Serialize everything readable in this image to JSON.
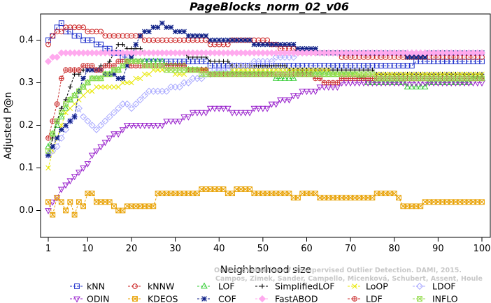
{
  "chart_data": {
    "type": "line",
    "title": "PageBlocks_norm_02_v06",
    "xlabel": "Neighborhood size",
    "ylabel": "Adjusted P@n",
    "xlim": [
      1,
      100
    ],
    "ylim": [
      -0.05,
      0.45
    ],
    "xticks": [
      1,
      10,
      20,
      30,
      40,
      50,
      60,
      70,
      80,
      90,
      100
    ],
    "yticks": [
      0.0,
      0.1,
      0.2,
      0.3,
      0.4
    ],
    "ytick_labels": [
      "0.0",
      "0.1",
      "0.2",
      "0.3",
      "0.4"
    ],
    "grid": false,
    "legend_position": "bottom",
    "watermark": [
      "Campos, Zimek, Sander, Campello, Micenková, Schubert, Assent, Houle",
      "On the Evaluation of Unsupervised Outlier Detection. DAMI, 2015."
    ],
    "series": [
      {
        "name": "kNN",
        "color": "#2233cc",
        "marker": "square",
        "points": [
          [
            1,
            0.4
          ],
          [
            2,
            0.41
          ],
          [
            3,
            0.43
          ],
          [
            4,
            0.44
          ],
          [
            5,
            0.42
          ],
          [
            7,
            0.41
          ],
          [
            10,
            0.4
          ],
          [
            12,
            0.39
          ],
          [
            15,
            0.38
          ],
          [
            18,
            0.36
          ],
          [
            20,
            0.35
          ],
          [
            25,
            0.35
          ],
          [
            30,
            0.35
          ],
          [
            35,
            0.35
          ],
          [
            40,
            0.34
          ],
          [
            50,
            0.34
          ],
          [
            60,
            0.34
          ],
          [
            70,
            0.34
          ],
          [
            80,
            0.34
          ],
          [
            90,
            0.35
          ],
          [
            100,
            0.35
          ]
        ]
      },
      {
        "name": "kNNW",
        "color": "#cc2222",
        "marker": "circle",
        "points": [
          [
            1,
            0.39
          ],
          [
            2,
            0.41
          ],
          [
            4,
            0.42
          ],
          [
            6,
            0.43
          ],
          [
            8,
            0.43
          ],
          [
            10,
            0.42
          ],
          [
            12,
            0.42
          ],
          [
            15,
            0.41
          ],
          [
            20,
            0.41
          ],
          [
            25,
            0.4
          ],
          [
            30,
            0.4
          ],
          [
            35,
            0.4
          ],
          [
            40,
            0.39
          ],
          [
            45,
            0.4
          ],
          [
            50,
            0.4
          ],
          [
            55,
            0.38
          ],
          [
            60,
            0.37
          ],
          [
            65,
            0.37
          ],
          [
            70,
            0.36
          ],
          [
            80,
            0.36
          ],
          [
            90,
            0.36
          ],
          [
            100,
            0.36
          ]
        ]
      },
      {
        "name": "LOF",
        "color": "#33cc33",
        "marker": "triangle",
        "points": [
          [
            1,
            0.15
          ],
          [
            3,
            0.2
          ],
          [
            5,
            0.24
          ],
          [
            7,
            0.27
          ],
          [
            10,
            0.3
          ],
          [
            12,
            0.31
          ],
          [
            15,
            0.32
          ],
          [
            18,
            0.34
          ],
          [
            20,
            0.35
          ],
          [
            25,
            0.35
          ],
          [
            30,
            0.34
          ],
          [
            35,
            0.33
          ],
          [
            40,
            0.32
          ],
          [
            45,
            0.32
          ],
          [
            50,
            0.32
          ],
          [
            55,
            0.31
          ],
          [
            60,
            0.32
          ],
          [
            65,
            0.32
          ],
          [
            70,
            0.32
          ],
          [
            75,
            0.3
          ],
          [
            80,
            0.3
          ],
          [
            85,
            0.29
          ],
          [
            90,
            0.3
          ],
          [
            95,
            0.3
          ],
          [
            100,
            0.31
          ]
        ]
      },
      {
        "name": "SimplifiedLOF",
        "color": "#000000",
        "marker": "plus",
        "points": [
          [
            1,
            0.13
          ],
          [
            3,
            0.21
          ],
          [
            5,
            0.26
          ],
          [
            7,
            0.32
          ],
          [
            10,
            0.33
          ],
          [
            12,
            0.33
          ],
          [
            15,
            0.35
          ],
          [
            17,
            0.39
          ],
          [
            20,
            0.38
          ],
          [
            25,
            0.37
          ],
          [
            30,
            0.37
          ],
          [
            35,
            0.36
          ],
          [
            40,
            0.35
          ],
          [
            45,
            0.34
          ],
          [
            50,
            0.34
          ],
          [
            60,
            0.33
          ],
          [
            70,
            0.33
          ],
          [
            80,
            0.32
          ],
          [
            90,
            0.32
          ],
          [
            100,
            0.32
          ]
        ]
      },
      {
        "name": "LoOP",
        "color": "#e8e800",
        "marker": "x",
        "points": [
          [
            1,
            0.1
          ],
          [
            3,
            0.17
          ],
          [
            5,
            0.23
          ],
          [
            7,
            0.25
          ],
          [
            10,
            0.28
          ],
          [
            13,
            0.29
          ],
          [
            16,
            0.29
          ],
          [
            20,
            0.3
          ],
          [
            22,
            0.31
          ],
          [
            25,
            0.33
          ],
          [
            28,
            0.33
          ],
          [
            30,
            0.32
          ],
          [
            35,
            0.33
          ],
          [
            40,
            0.32
          ],
          [
            45,
            0.33
          ],
          [
            50,
            0.33
          ],
          [
            60,
            0.33
          ],
          [
            70,
            0.32
          ],
          [
            80,
            0.32
          ],
          [
            90,
            0.32
          ],
          [
            100,
            0.32
          ]
        ]
      },
      {
        "name": "LDOF",
        "color": "#aaaaff",
        "marker": "diamond",
        "points": [
          [
            1,
            0.13
          ],
          [
            3,
            0.15
          ],
          [
            5,
            0.19
          ],
          [
            8,
            0.24
          ],
          [
            10,
            0.21
          ],
          [
            12,
            0.19
          ],
          [
            15,
            0.22
          ],
          [
            18,
            0.25
          ],
          [
            20,
            0.24
          ],
          [
            23,
            0.27
          ],
          [
            25,
            0.28
          ],
          [
            28,
            0.28
          ],
          [
            30,
            0.29
          ],
          [
            35,
            0.31
          ],
          [
            40,
            0.33
          ],
          [
            45,
            0.34
          ],
          [
            50,
            0.35
          ],
          [
            55,
            0.36
          ],
          [
            60,
            0.37
          ],
          [
            70,
            0.37
          ],
          [
            80,
            0.37
          ],
          [
            90,
            0.37
          ],
          [
            100,
            0.37
          ]
        ]
      },
      {
        "name": "ODIN",
        "color": "#9922cc",
        "marker": "triangle-down",
        "points": [
          [
            1,
            0.0
          ],
          [
            3,
            0.03
          ],
          [
            5,
            0.06
          ],
          [
            7,
            0.08
          ],
          [
            10,
            0.11
          ],
          [
            12,
            0.14
          ],
          [
            15,
            0.17
          ],
          [
            18,
            0.19
          ],
          [
            20,
            0.2
          ],
          [
            25,
            0.2
          ],
          [
            30,
            0.21
          ],
          [
            35,
            0.23
          ],
          [
            40,
            0.24
          ],
          [
            45,
            0.23
          ],
          [
            50,
            0.24
          ],
          [
            55,
            0.26
          ],
          [
            60,
            0.28
          ],
          [
            65,
            0.29
          ],
          [
            70,
            0.3
          ],
          [
            75,
            0.3
          ],
          [
            80,
            0.3
          ],
          [
            90,
            0.3
          ],
          [
            100,
            0.3
          ]
        ]
      },
      {
        "name": "KDEOS",
        "color": "#e8a000",
        "marker": "square-x",
        "points": [
          [
            1,
            0.02
          ],
          [
            2,
            -0.01
          ],
          [
            3,
            0.03
          ],
          [
            4,
            0.02
          ],
          [
            5,
            0.0
          ],
          [
            6,
            0.02
          ],
          [
            7,
            -0.01
          ],
          [
            8,
            0.02
          ],
          [
            9,
            0.01
          ],
          [
            10,
            0.04
          ],
          [
            11,
            0.04
          ],
          [
            12,
            0.02
          ],
          [
            15,
            0.02
          ],
          [
            17,
            0.0
          ],
          [
            20,
            0.01
          ],
          [
            25,
            0.01
          ],
          [
            26,
            0.04
          ],
          [
            30,
            0.04
          ],
          [
            35,
            0.04
          ],
          [
            36,
            0.05
          ],
          [
            40,
            0.05
          ],
          [
            42,
            0.04
          ],
          [
            45,
            0.05
          ],
          [
            50,
            0.04
          ],
          [
            55,
            0.04
          ],
          [
            58,
            0.03
          ],
          [
            60,
            0.04
          ],
          [
            65,
            0.03
          ],
          [
            70,
            0.03
          ],
          [
            75,
            0.03
          ],
          [
            76,
            0.04
          ],
          [
            80,
            0.04
          ],
          [
            82,
            0.01
          ],
          [
            85,
            0.01
          ],
          [
            88,
            0.02
          ],
          [
            90,
            0.02
          ],
          [
            100,
            0.02
          ]
        ]
      },
      {
        "name": "COF",
        "color": "#112288",
        "marker": "asterisk",
        "points": [
          [
            1,
            0.13
          ],
          [
            3,
            0.17
          ],
          [
            5,
            0.2
          ],
          [
            7,
            0.22
          ],
          [
            8,
            0.28
          ],
          [
            10,
            0.33
          ],
          [
            12,
            0.33
          ],
          [
            15,
            0.32
          ],
          [
            18,
            0.31
          ],
          [
            20,
            0.36
          ],
          [
            22,
            0.41
          ],
          [
            24,
            0.42
          ],
          [
            27,
            0.44
          ],
          [
            30,
            0.42
          ],
          [
            35,
            0.41
          ],
          [
            40,
            0.4
          ],
          [
            45,
            0.4
          ],
          [
            50,
            0.39
          ],
          [
            55,
            0.39
          ],
          [
            60,
            0.38
          ],
          [
            65,
            0.37
          ],
          [
            70,
            0.37
          ],
          [
            75,
            0.37
          ],
          [
            80,
            0.37
          ],
          [
            85,
            0.36
          ],
          [
            90,
            0.37
          ],
          [
            100,
            0.37
          ]
        ]
      },
      {
        "name": "FastABOD",
        "color": "#ffaaee",
        "marker": "diamond-filled",
        "points": [
          [
            1,
            0.35
          ],
          [
            3,
            0.36
          ],
          [
            5,
            0.37
          ],
          [
            7,
            0.37
          ],
          [
            10,
            0.37
          ],
          [
            15,
            0.37
          ],
          [
            20,
            0.37
          ],
          [
            30,
            0.37
          ],
          [
            40,
            0.37
          ],
          [
            50,
            0.37
          ],
          [
            60,
            0.37
          ],
          [
            70,
            0.37
          ],
          [
            80,
            0.37
          ],
          [
            90,
            0.37
          ],
          [
            100,
            0.37
          ]
        ]
      },
      {
        "name": "LDF",
        "color": "#cc3333",
        "marker": "circle-plus",
        "points": [
          [
            1,
            0.17
          ],
          [
            3,
            0.25
          ],
          [
            4,
            0.31
          ],
          [
            5,
            0.33
          ],
          [
            8,
            0.33
          ],
          [
            10,
            0.34
          ],
          [
            12,
            0.33
          ],
          [
            15,
            0.34
          ],
          [
            18,
            0.35
          ],
          [
            20,
            0.34
          ],
          [
            25,
            0.34
          ],
          [
            30,
            0.34
          ],
          [
            35,
            0.33
          ],
          [
            40,
            0.32
          ],
          [
            45,
            0.32
          ],
          [
            50,
            0.32
          ],
          [
            60,
            0.32
          ],
          [
            65,
            0.3
          ],
          [
            70,
            0.31
          ],
          [
            80,
            0.31
          ],
          [
            90,
            0.31
          ],
          [
            100,
            0.31
          ]
        ]
      },
      {
        "name": "INFLO",
        "color": "#99dd55",
        "marker": "square-cross",
        "points": [
          [
            1,
            0.14
          ],
          [
            3,
            0.21
          ],
          [
            5,
            0.25
          ],
          [
            7,
            0.27
          ],
          [
            10,
            0.3
          ],
          [
            12,
            0.31
          ],
          [
            15,
            0.32
          ],
          [
            18,
            0.34
          ],
          [
            20,
            0.35
          ],
          [
            25,
            0.34
          ],
          [
            30,
            0.33
          ],
          [
            40,
            0.32
          ],
          [
            50,
            0.32
          ],
          [
            60,
            0.32
          ],
          [
            70,
            0.32
          ],
          [
            80,
            0.31
          ],
          [
            90,
            0.31
          ],
          [
            100,
            0.31
          ]
        ]
      }
    ]
  }
}
